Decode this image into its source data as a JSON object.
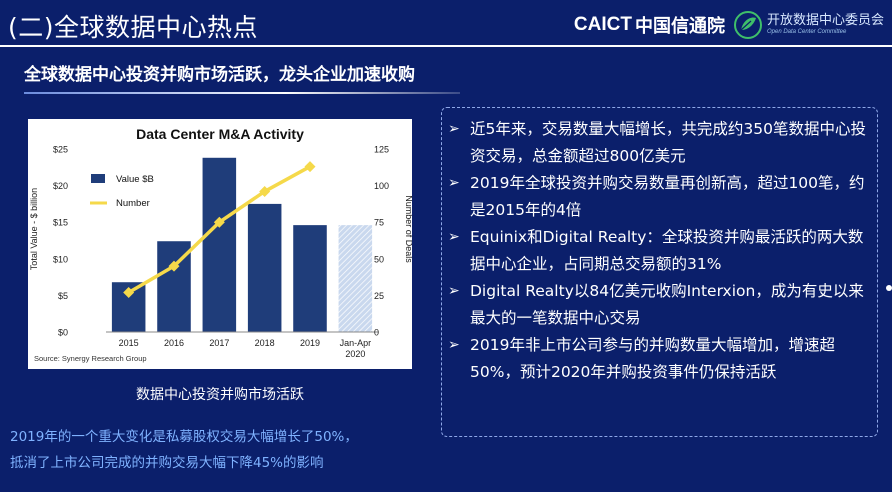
{
  "slide": {
    "title": "(二)全球数据中心热点",
    "subheading": "全球数据中心投资并购市场活跃，龙头企业加速收购"
  },
  "logos": {
    "caict_mark": "CAICT",
    "caict_cn": "中国信通院",
    "odcc_cn": "开放数据中心委员会",
    "odcc_en": "Open Data Center Committee"
  },
  "chart_data": {
    "type": "bar",
    "title": "Data Center M&A Activity",
    "categories": [
      "2015",
      "2016",
      "2017",
      "2018",
      "2019",
      "Jan-Apr 2020"
    ],
    "category_lines": [
      [
        "2015"
      ],
      [
        "2016"
      ],
      [
        "2017"
      ],
      [
        "2018"
      ],
      [
        "2019"
      ],
      [
        "Jan-Apr",
        "2020"
      ]
    ],
    "series": [
      {
        "name": "Value $B",
        "type": "bar",
        "axis": "left",
        "values": [
          6.8,
          12.4,
          23.8,
          17.5,
          14.6,
          14.6
        ],
        "color": "#1f3d7a"
      },
      {
        "name": "Number",
        "type": "line",
        "axis": "right",
        "values": [
          27,
          45,
          75,
          96,
          113,
          null
        ],
        "color": "#f5d94a"
      }
    ],
    "hatched_category": "Jan-Apr 2020",
    "ylabel": "Total Value - $ billion",
    "y2label": "Number of Deals",
    "ylim": [
      0,
      25
    ],
    "y2lim": [
      0,
      125
    ],
    "yticks": [
      "$0",
      "$5",
      "$10",
      "$15",
      "$20",
      "$25"
    ],
    "y2ticks": [
      "0",
      "25",
      "50",
      "75",
      "100",
      "125"
    ],
    "legend_position": "top-left",
    "grid": false,
    "source": "Source: Synergy Research Group"
  },
  "chart_caption": "数据中心投资并购市场活跃",
  "note": {
    "line1": "2019年的一个重大变化是私募股权交易大幅增长了50%，",
    "line2": "抵消了上市公司完成的并购交易大幅下降45%的影响"
  },
  "bullets": [
    {
      "arrow": "➢",
      "text": "近5年来，交易数量大幅增长，共完成约350笔数据中心投资交易，总金额超过800亿美元"
    },
    {
      "arrow": "➢",
      "text": "2019年全球投资并购交易数量再创新高，超过100笔，约是2015年的4倍"
    },
    {
      "arrow": "➢",
      "text": "Equinix和Digital Realty：全球投资并购最活跃的两大数据中心企业，占同期总交易额的31%"
    },
    {
      "arrow": "➢",
      "text": "Digital Realty以84亿美元收购Interxion，成为有史以来最大的一笔数据中心交易"
    },
    {
      "arrow": "➢",
      "text": "2019年非上市公司参与的并购数量大幅增加，增速超50%，预计2020年并购投资事件仍保持活跃"
    }
  ]
}
